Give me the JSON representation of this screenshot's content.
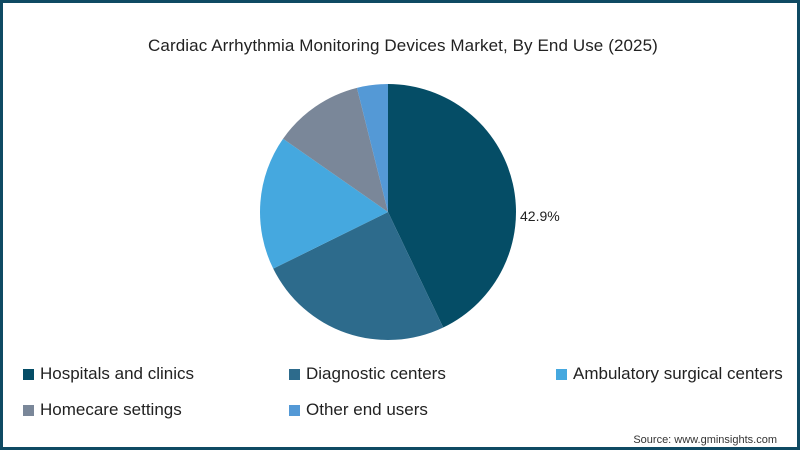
{
  "chart_data": {
    "type": "pie",
    "title": "Cardiac Arrhythmia Monitoring Devices  Market, By End Use (2025)",
    "categories": [
      "Hospitals and clinics",
      "Diagnostic centers",
      "Ambulatory surgical centers",
      "Homecare settings",
      "Other end users"
    ],
    "values": [
      42.9,
      24.8,
      17.0,
      11.4,
      3.9
    ],
    "colors": [
      "#054d66",
      "#2d6b8c",
      "#45a8df",
      "#7a8799",
      "#5499d6"
    ],
    "data_labels": [
      {
        "category": "Hospitals and clinics",
        "label": "42.9%"
      }
    ],
    "legend_position": "bottom",
    "start_angle_deg": 0,
    "direction": "clockwise"
  },
  "title": "Cardiac Arrhythmia Monitoring Devices  Market, By End Use (2025)",
  "label_hospitals": "42.9%",
  "legend": [
    {
      "label": "Hospitals and clinics",
      "color": "#054d66"
    },
    {
      "label": "Diagnostic centers",
      "color": "#2d6b8c"
    },
    {
      "label": "Ambulatory surgical centers",
      "color": "#45a8df"
    },
    {
      "label": "Homecare settings",
      "color": "#7a8799"
    },
    {
      "label": "Other end users",
      "color": "#5499d6"
    }
  ],
  "source": "Source: www.gminsights.com"
}
